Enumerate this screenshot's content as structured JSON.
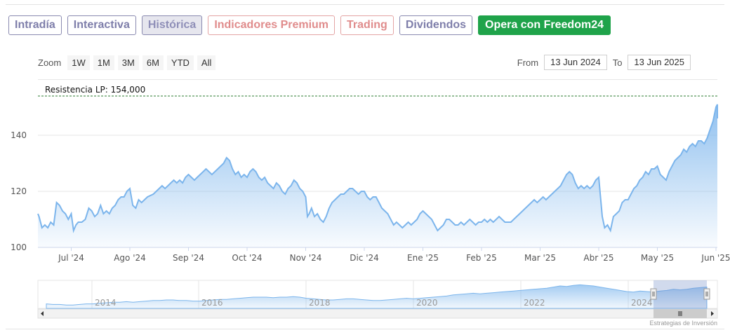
{
  "tabs": [
    {
      "label": "Intradía",
      "active": false
    },
    {
      "label": "Interactiva",
      "active": false
    },
    {
      "label": "Histórica",
      "active": true
    },
    {
      "label": "Indicadores Premium",
      "active": false
    },
    {
      "label": "Trading",
      "active": false
    },
    {
      "label": "Dividendos",
      "active": false
    },
    {
      "label": "Opera con Freedom24",
      "active": false
    }
  ],
  "zoom": {
    "label": "Zoom",
    "buttons": [
      "1W",
      "1M",
      "3M",
      "6M",
      "YTD",
      "All"
    ]
  },
  "range": {
    "from_label": "From",
    "from": "13 Jun 2024",
    "to_label": "To",
    "to": "13 Jun 2025"
  },
  "colors": {
    "line": "#7cb5ec",
    "accent": "#1fa34a",
    "resistance": "#2e7d32"
  },
  "credits": "Estrategias de Inversión",
  "chart_data": {
    "type": "area",
    "resistance": {
      "label": "Resistencia LP: 154,000",
      "value": 154
    },
    "ylim": [
      100,
      155
    ],
    "y_ticks": [
      100,
      120,
      140
    ],
    "x_ticks": [
      {
        "label": "Jul '24",
        "t": 0.0
      },
      {
        "label": "Ago '24",
        "t": 1.0
      },
      {
        "label": "Sep '24",
        "t": 2.0
      },
      {
        "label": "Oct '24",
        "t": 3.0
      },
      {
        "label": "Nov '24",
        "t": 4.0
      },
      {
        "label": "Dic '24",
        "t": 5.0
      },
      {
        "label": "Ene '25",
        "t": 6.0
      },
      {
        "label": "Feb '25",
        "t": 7.0
      },
      {
        "label": "Mar '25",
        "t": 8.0
      },
      {
        "label": "Abr '25",
        "t": 9.0
      },
      {
        "label": "May '25",
        "t": 10.0
      },
      {
        "label": "Jun '25",
        "t": 11.0
      }
    ],
    "x_range": [
      -0.6,
      11.4
    ],
    "series": [
      {
        "points": [
          [
            -0.6,
            112
          ],
          [
            -0.55,
            111
          ],
          [
            -0.5,
            107
          ],
          [
            -0.45,
            108
          ],
          [
            -0.4,
            107
          ],
          [
            -0.35,
            109
          ],
          [
            -0.3,
            108
          ],
          [
            -0.25,
            116
          ],
          [
            -0.2,
            115
          ],
          [
            -0.15,
            113
          ],
          [
            -0.1,
            112
          ],
          [
            -0.05,
            110
          ],
          [
            0.0,
            112
          ],
          [
            0.04,
            106
          ],
          [
            0.08,
            108
          ],
          [
            0.12,
            109
          ],
          [
            0.18,
            109
          ],
          [
            0.24,
            110
          ],
          [
            0.3,
            114
          ],
          [
            0.35,
            113
          ],
          [
            0.4,
            111
          ],
          [
            0.45,
            112
          ],
          [
            0.5,
            115
          ],
          [
            0.55,
            112
          ],
          [
            0.6,
            113
          ],
          [
            0.65,
            112
          ],
          [
            0.7,
            114
          ],
          [
            0.75,
            115
          ],
          [
            0.8,
            117
          ],
          [
            0.85,
            118
          ],
          [
            0.9,
            118
          ],
          [
            0.95,
            120
          ],
          [
            1.0,
            121
          ],
          [
            1.05,
            115
          ],
          [
            1.1,
            114
          ],
          [
            1.15,
            117
          ],
          [
            1.2,
            116
          ],
          [
            1.3,
            118
          ],
          [
            1.4,
            119
          ],
          [
            1.5,
            121
          ],
          [
            1.55,
            122
          ],
          [
            1.6,
            121
          ],
          [
            1.65,
            122
          ],
          [
            1.7,
            123
          ],
          [
            1.75,
            124
          ],
          [
            1.8,
            123
          ],
          [
            1.85,
            124
          ],
          [
            1.9,
            123
          ],
          [
            1.95,
            125
          ],
          [
            2.0,
            126
          ],
          [
            2.05,
            125
          ],
          [
            2.1,
            124
          ],
          [
            2.15,
            125
          ],
          [
            2.2,
            126
          ],
          [
            2.25,
            127
          ],
          [
            2.3,
            128
          ],
          [
            2.35,
            127
          ],
          [
            2.4,
            126
          ],
          [
            2.45,
            127
          ],
          [
            2.5,
            128
          ],
          [
            2.55,
            129
          ],
          [
            2.6,
            130
          ],
          [
            2.65,
            132
          ],
          [
            2.7,
            131
          ],
          [
            2.75,
            128
          ],
          [
            2.8,
            126
          ],
          [
            2.85,
            127
          ],
          [
            2.9,
            125
          ],
          [
            2.95,
            126
          ],
          [
            3.0,
            125
          ],
          [
            3.05,
            127
          ],
          [
            3.1,
            128
          ],
          [
            3.15,
            127
          ],
          [
            3.2,
            125
          ],
          [
            3.25,
            124
          ],
          [
            3.3,
            125
          ],
          [
            3.35,
            123
          ],
          [
            3.4,
            122
          ],
          [
            3.45,
            121
          ],
          [
            3.5,
            123
          ],
          [
            3.55,
            122
          ],
          [
            3.6,
            120
          ],
          [
            3.65,
            119
          ],
          [
            3.7,
            121
          ],
          [
            3.75,
            122
          ],
          [
            3.8,
            124
          ],
          [
            3.85,
            123
          ],
          [
            3.9,
            121
          ],
          [
            3.95,
            120
          ],
          [
            4.0,
            118
          ],
          [
            4.03,
            111
          ],
          [
            4.06,
            112
          ],
          [
            4.1,
            114
          ],
          [
            4.15,
            111
          ],
          [
            4.2,
            112
          ],
          [
            4.25,
            110
          ],
          [
            4.3,
            109
          ],
          [
            4.35,
            111
          ],
          [
            4.4,
            114
          ],
          [
            4.45,
            116
          ],
          [
            4.5,
            117
          ],
          [
            4.55,
            118
          ],
          [
            4.6,
            119
          ],
          [
            4.65,
            119
          ],
          [
            4.7,
            120
          ],
          [
            4.75,
            121
          ],
          [
            4.8,
            121
          ],
          [
            4.85,
            120
          ],
          [
            4.9,
            119
          ],
          [
            4.95,
            120
          ],
          [
            5.0,
            120
          ],
          [
            5.05,
            118
          ],
          [
            5.1,
            117
          ],
          [
            5.15,
            118
          ],
          [
            5.2,
            118
          ],
          [
            5.25,
            116
          ],
          [
            5.3,
            114
          ],
          [
            5.35,
            113
          ],
          [
            5.4,
            112
          ],
          [
            5.45,
            110
          ],
          [
            5.5,
            108
          ],
          [
            5.55,
            109
          ],
          [
            5.6,
            108
          ],
          [
            5.65,
            107
          ],
          [
            5.7,
            108
          ],
          [
            5.75,
            109
          ],
          [
            5.8,
            108
          ],
          [
            5.85,
            109
          ],
          [
            5.9,
            110
          ],
          [
            5.95,
            112
          ],
          [
            6.0,
            113
          ],
          [
            6.05,
            112
          ],
          [
            6.1,
            111
          ],
          [
            6.15,
            110
          ],
          [
            6.2,
            108
          ],
          [
            6.25,
            106
          ],
          [
            6.3,
            107
          ],
          [
            6.35,
            108
          ],
          [
            6.4,
            110
          ],
          [
            6.45,
            110
          ],
          [
            6.5,
            109
          ],
          [
            6.55,
            108
          ],
          [
            6.6,
            108
          ],
          [
            6.65,
            109
          ],
          [
            6.7,
            108
          ],
          [
            6.75,
            109
          ],
          [
            6.8,
            110
          ],
          [
            6.85,
            109
          ],
          [
            6.9,
            108
          ],
          [
            6.95,
            109
          ],
          [
            7.0,
            109
          ],
          [
            7.05,
            110
          ],
          [
            7.1,
            109
          ],
          [
            7.15,
            110
          ],
          [
            7.2,
            109
          ],
          [
            7.25,
            110
          ],
          [
            7.3,
            111
          ],
          [
            7.35,
            110
          ],
          [
            7.4,
            109
          ],
          [
            7.45,
            109
          ],
          [
            7.5,
            109
          ],
          [
            7.55,
            110
          ],
          [
            7.6,
            111
          ],
          [
            7.65,
            112
          ],
          [
            7.7,
            113
          ],
          [
            7.75,
            114
          ],
          [
            7.8,
            115
          ],
          [
            7.85,
            116
          ],
          [
            7.9,
            117
          ],
          [
            7.95,
            116
          ],
          [
            8.0,
            117
          ],
          [
            8.05,
            118
          ],
          [
            8.1,
            117
          ],
          [
            8.15,
            118
          ],
          [
            8.2,
            119
          ],
          [
            8.25,
            120
          ],
          [
            8.3,
            121
          ],
          [
            8.35,
            122
          ],
          [
            8.4,
            124
          ],
          [
            8.45,
            126
          ],
          [
            8.5,
            127
          ],
          [
            8.55,
            126
          ],
          [
            8.6,
            123
          ],
          [
            8.65,
            121
          ],
          [
            8.7,
            122
          ],
          [
            8.75,
            121
          ],
          [
            8.8,
            122
          ],
          [
            8.85,
            121
          ],
          [
            8.9,
            122
          ],
          [
            8.95,
            124
          ],
          [
            9.0,
            125
          ],
          [
            9.03,
            118
          ],
          [
            9.06,
            111
          ],
          [
            9.1,
            107
          ],
          [
            9.15,
            108
          ],
          [
            9.2,
            106
          ],
          [
            9.25,
            111
          ],
          [
            9.3,
            112
          ],
          [
            9.35,
            113
          ],
          [
            9.4,
            116
          ],
          [
            9.45,
            117
          ],
          [
            9.5,
            117
          ],
          [
            9.55,
            119
          ],
          [
            9.6,
            121
          ],
          [
            9.65,
            122
          ],
          [
            9.7,
            124
          ],
          [
            9.75,
            125
          ],
          [
            9.8,
            127
          ],
          [
            9.85,
            126
          ],
          [
            9.9,
            128
          ],
          [
            9.95,
            128
          ],
          [
            10.0,
            129
          ],
          [
            10.05,
            126
          ],
          [
            10.1,
            125
          ],
          [
            10.15,
            124
          ],
          [
            10.2,
            127
          ],
          [
            10.25,
            129
          ],
          [
            10.3,
            131
          ],
          [
            10.35,
            132
          ],
          [
            10.4,
            133
          ],
          [
            10.45,
            135
          ],
          [
            10.5,
            134
          ],
          [
            10.55,
            136
          ],
          [
            10.6,
            137
          ],
          [
            10.65,
            136
          ],
          [
            10.7,
            138
          ],
          [
            10.75,
            138
          ],
          [
            10.8,
            137
          ],
          [
            10.85,
            139
          ],
          [
            10.9,
            142
          ],
          [
            10.95,
            145
          ],
          [
            11.0,
            150
          ],
          [
            11.05,
            151
          ],
          [
            11.1,
            150
          ],
          [
            11.15,
            149
          ],
          [
            11.2,
            149
          ],
          [
            11.25,
            148
          ],
          [
            11.3,
            148
          ],
          [
            11.35,
            147
          ],
          [
            11.4,
            146
          ]
        ]
      }
    ],
    "navigator": {
      "ticks": [
        "2014",
        "2016",
        "2018",
        "2020",
        "2022",
        "2024"
      ]
    }
  }
}
